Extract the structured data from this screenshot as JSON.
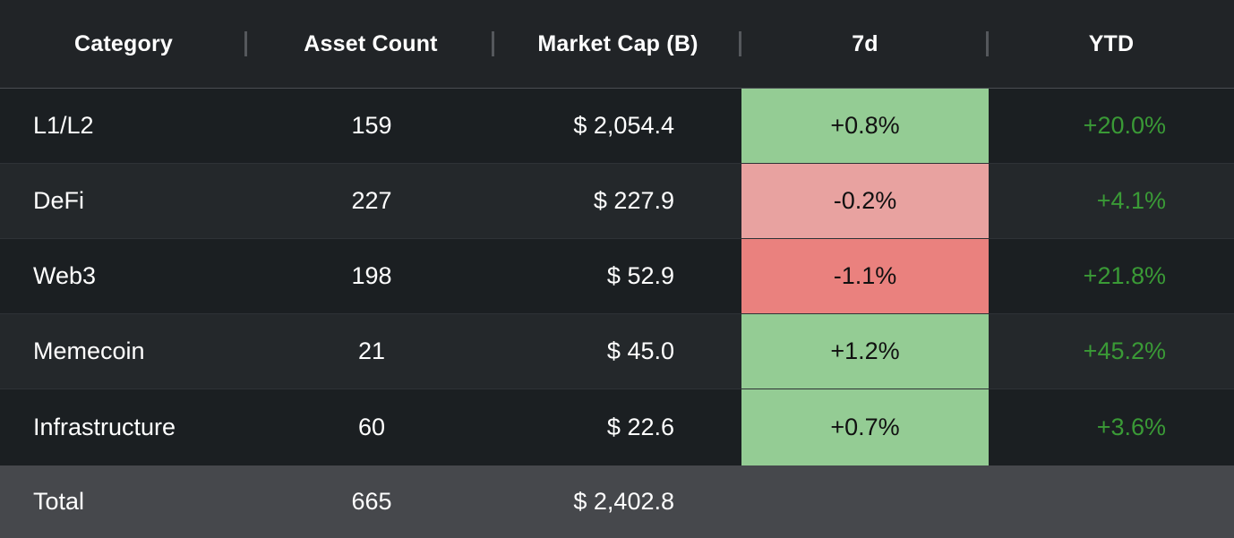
{
  "colors": {
    "positive_fill": "#94cc94",
    "negative_light_fill": "#e8a2a0",
    "negative_strong_fill": "#ea817e",
    "ytd_text": "#3a9a36"
  },
  "header": {
    "category": "Category",
    "asset_count": "Asset Count",
    "market_cap": "Market Cap (B)",
    "d7": "7d",
    "ytd": "YTD"
  },
  "rows": [
    {
      "category": "L1/L2",
      "asset_count": "159",
      "market_cap": "$ 2,054.4",
      "d7": "+0.8%",
      "d7_color": "#94cc94",
      "ytd": "+20.0%"
    },
    {
      "category": "DeFi",
      "asset_count": "227",
      "market_cap": "$ 227.9",
      "d7": "-0.2%",
      "d7_color": "#e8a2a0",
      "ytd": "+4.1%"
    },
    {
      "category": "Web3",
      "asset_count": "198",
      "market_cap": "$ 52.9",
      "d7": "-1.1%",
      "d7_color": "#ea817e",
      "ytd": "+21.8%"
    },
    {
      "category": "Memecoin",
      "asset_count": "21",
      "market_cap": "$ 45.0",
      "d7": "+1.2%",
      "d7_color": "#94cc94",
      "ytd": "+45.2%"
    },
    {
      "category": "Infrastructure",
      "asset_count": "60",
      "market_cap": "$ 22.6",
      "d7": "+0.7%",
      "d7_color": "#94cc94",
      "ytd": "+3.6%"
    }
  ],
  "total": {
    "category": "Total",
    "asset_count": "665",
    "market_cap": "$ 2,402.8"
  }
}
